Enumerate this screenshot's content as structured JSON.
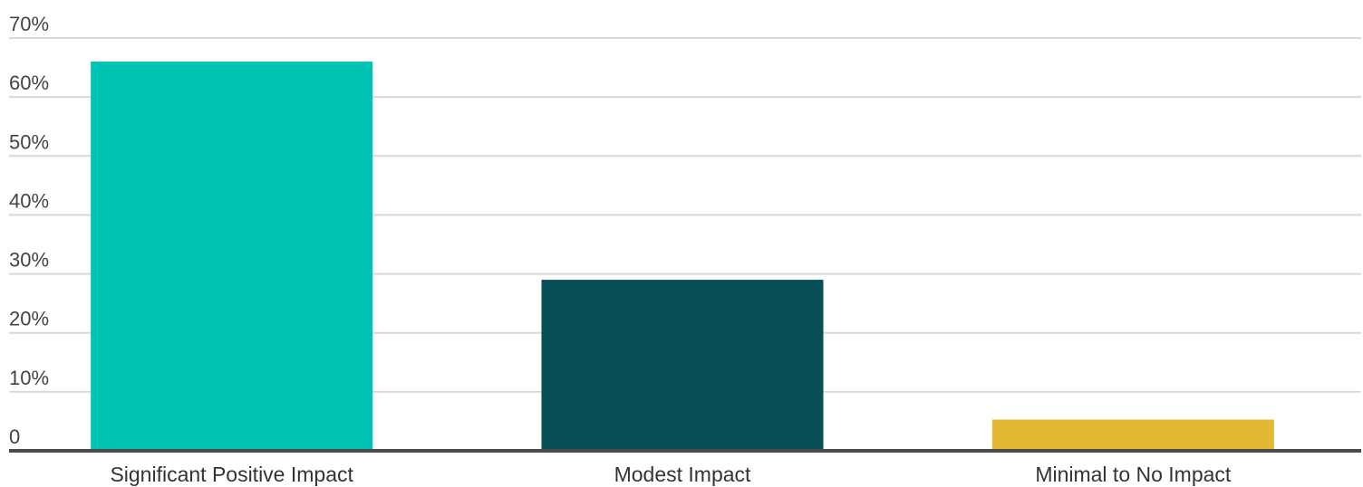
{
  "chart_data": {
    "type": "bar",
    "categories": [
      "Significant Positive Impact",
      "Modest Impact",
      "Minimal to No Impact"
    ],
    "values": [
      66,
      29,
      5.3
    ],
    "colors": [
      "#00c4b3",
      "#084f55",
      "#e3b835"
    ],
    "ylim": [
      0,
      70
    ],
    "yticks": [
      0,
      10,
      20,
      30,
      40,
      50,
      60,
      70
    ],
    "ytick_labels": [
      "0",
      "10%",
      "20%",
      "30%",
      "40%",
      "50%",
      "60%",
      "70%"
    ],
    "grid": true,
    "legend": "none"
  }
}
